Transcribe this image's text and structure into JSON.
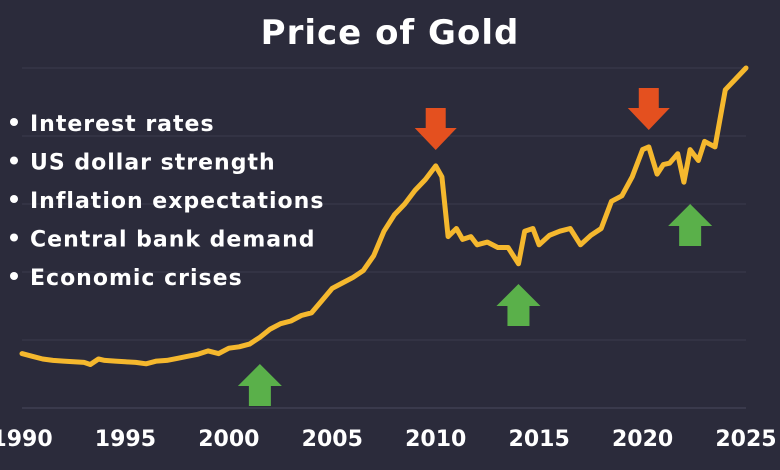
{
  "chart_data": {
    "type": "line",
    "title": "Price of Gold",
    "xlabel": "",
    "ylabel": "",
    "xlim": [
      1990,
      2025
    ],
    "ylim": [
      0,
      2500
    ],
    "grid": true,
    "x_ticks": [
      "1990",
      "1995",
      "2000",
      "2005",
      "2010",
      "2015",
      "2020",
      "2025"
    ],
    "bullets": [
      "Interest rates",
      "US dollar strength",
      "Inflation expectations",
      "Central bank demand",
      "Economic crises"
    ],
    "series": [
      {
        "color": "#f5b82e",
        "x": [
          1990,
          1990.5,
          1991,
          1991.5,
          1992,
          1992.5,
          1993,
          1993.3,
          1993.7,
          1994,
          1994.5,
          1995,
          1995.5,
          1996,
          1996.5,
          1997,
          1997.5,
          1998,
          1998.5,
          1999,
          1999.5,
          2000,
          2000.5,
          2001,
          2001.5,
          2002,
          2002.5,
          2003,
          2003.5,
          2004,
          2004.5,
          2005,
          2005.5,
          2006,
          2006.5,
          2007,
          2007.5,
          2008,
          2008.5,
          2009,
          2009.5,
          2010,
          2010.3,
          2010.6,
          2011,
          2011.3,
          2011.7,
          2012,
          2012.5,
          2013,
          2013.5,
          2014,
          2014.3,
          2014.7,
          2015,
          2015.5,
          2016,
          2016.5,
          2017,
          2017.5,
          2018,
          2018.5,
          2019,
          2019.5,
          2020,
          2020.3,
          2020.7,
          2021,
          2021.3,
          2021.7,
          2022,
          2022.3,
          2022.7,
          2023,
          2023.5,
          2024,
          2024.5,
          2025
        ],
        "y": [
          400,
          380,
          360,
          350,
          345,
          340,
          335,
          320,
          360,
          350,
          345,
          340,
          335,
          325,
          345,
          350,
          365,
          380,
          395,
          420,
          400,
          440,
          450,
          470,
          520,
          580,
          620,
          640,
          680,
          700,
          790,
          880,
          920,
          960,
          1010,
          1120,
          1300,
          1420,
          1500,
          1600,
          1680,
          1780,
          1700,
          1260,
          1320,
          1240,
          1260,
          1200,
          1220,
          1180,
          1180,
          1060,
          1300,
          1320,
          1200,
          1270,
          1300,
          1320,
          1200,
          1270,
          1320,
          1520,
          1560,
          1700,
          1900,
          1920,
          1720,
          1790,
          1800,
          1870,
          1660,
          1900,
          1820,
          1960,
          1920,
          2340,
          2420,
          2500
        ]
      }
    ],
    "arrows_down": [
      2010,
      2020.3
    ],
    "arrows_up": [
      2001.5,
      2014,
      2022.3
    ]
  }
}
